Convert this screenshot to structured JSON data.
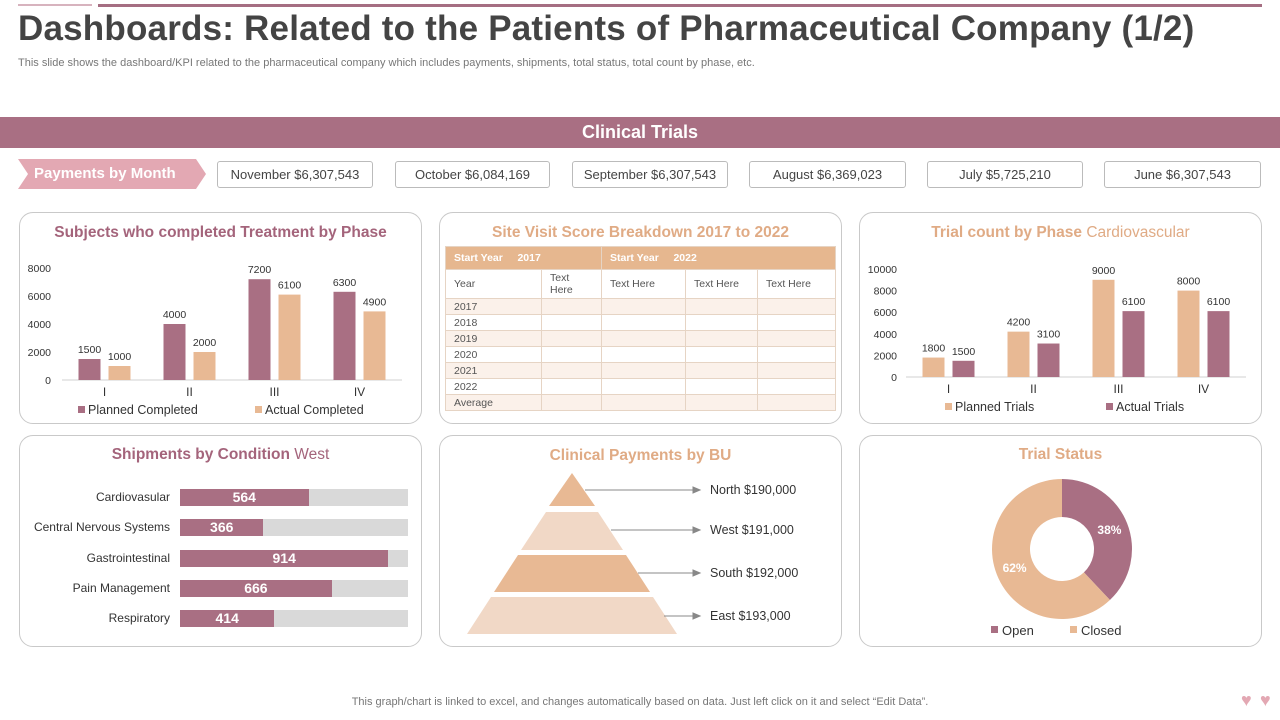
{
  "header": {
    "title": "Dashboards: Related to the Patients of Pharmaceutical Company (1/2)",
    "subtitle": "This slide shows the dashboard/KPI related to the pharmaceutical company which includes payments, shipments, total status, total count by phase, etc."
  },
  "banner": "Clinical Trials",
  "payments": {
    "label": "Payments by Month",
    "months": [
      "November  $6,307,543",
      "October $6,084,169",
      "September $6,307,543",
      "August $6,369,023",
      "July $5,725,210",
      "June $6,307,543"
    ]
  },
  "colors": {
    "mauve": "#a96f83",
    "tan": "#e8b994",
    "grey": "#d9d9d9",
    "pink": "#e3a8b3"
  },
  "treatment": {
    "title": "Subjects who completed Treatment by Phase",
    "legend": [
      "Planned Completed",
      "Actual Completed"
    ]
  },
  "site_visit": {
    "title": "Site Visit Score Breakdown 2017 to 2022",
    "start_label": "Start Year",
    "start_a": "2017",
    "start_b": "2022",
    "year_label": "Year",
    "col_text": "Text Here",
    "rows": [
      "2017",
      "2018",
      "2019",
      "2020",
      "2021",
      "2022",
      "Average"
    ]
  },
  "trial_count": {
    "title_main": "Trial count by Phase",
    "title_sub": "Cardiovascular",
    "legend": [
      "Planned Trials",
      "Actual Trials"
    ]
  },
  "shipments": {
    "title_main": "Shipments by Condition",
    "title_sub": "West",
    "max": 1000,
    "items": [
      {
        "label": "Cardiovasular",
        "value": 564
      },
      {
        "label": "Central Nervous Systems",
        "value": 366
      },
      {
        "label": "Gastrointestinal",
        "value": 914
      },
      {
        "label": "Pain Management",
        "value": 666
      },
      {
        "label": "Respiratory",
        "value": 414
      }
    ]
  },
  "payments_bu": {
    "title": "Clinical Payments by BU",
    "items": [
      "North $190,000",
      "West $191,000",
      "South $192,000",
      "East $193,000"
    ]
  },
  "trial_status": {
    "title": "Trial Status",
    "legend": [
      "Open",
      "Closed"
    ]
  },
  "chart_data": [
    {
      "type": "bar",
      "title": "Subjects who completed Treatment by Phase",
      "categories": [
        "I",
        "II",
        "III",
        "IV"
      ],
      "series": [
        {
          "name": "Planned Completed",
          "values": [
            1500,
            4000,
            7200,
            6300
          ]
        },
        {
          "name": "Actual Completed",
          "values": [
            1000,
            2000,
            6100,
            4900
          ]
        }
      ],
      "yticks": [
        "0",
        "2000",
        "4000",
        "6000",
        "8000"
      ],
      "ylim": [
        0,
        8000
      ]
    },
    {
      "type": "bar",
      "title": "Trial count by Phase Cardiovascular",
      "categories": [
        "I",
        "II",
        "III",
        "IV"
      ],
      "series": [
        {
          "name": "Planned Trials",
          "values": [
            1800,
            4200,
            9000,
            8000
          ]
        },
        {
          "name": "Actual Trials",
          "values": [
            1500,
            3100,
            6100,
            6100
          ]
        }
      ],
      "yticks": [
        "0",
        "2000",
        "4000",
        "6000",
        "8000",
        "10000"
      ],
      "ylim": [
        0,
        10000
      ]
    },
    {
      "type": "pie",
      "title": "Trial Status",
      "labels": [
        "Open",
        "Closed"
      ],
      "values": [
        38,
        62
      ],
      "display": [
        "38%",
        "62%"
      ]
    }
  ],
  "footer": "This graph/chart is linked to excel,  and changes automatically based on data. Just left click on it and select “Edit Data”."
}
